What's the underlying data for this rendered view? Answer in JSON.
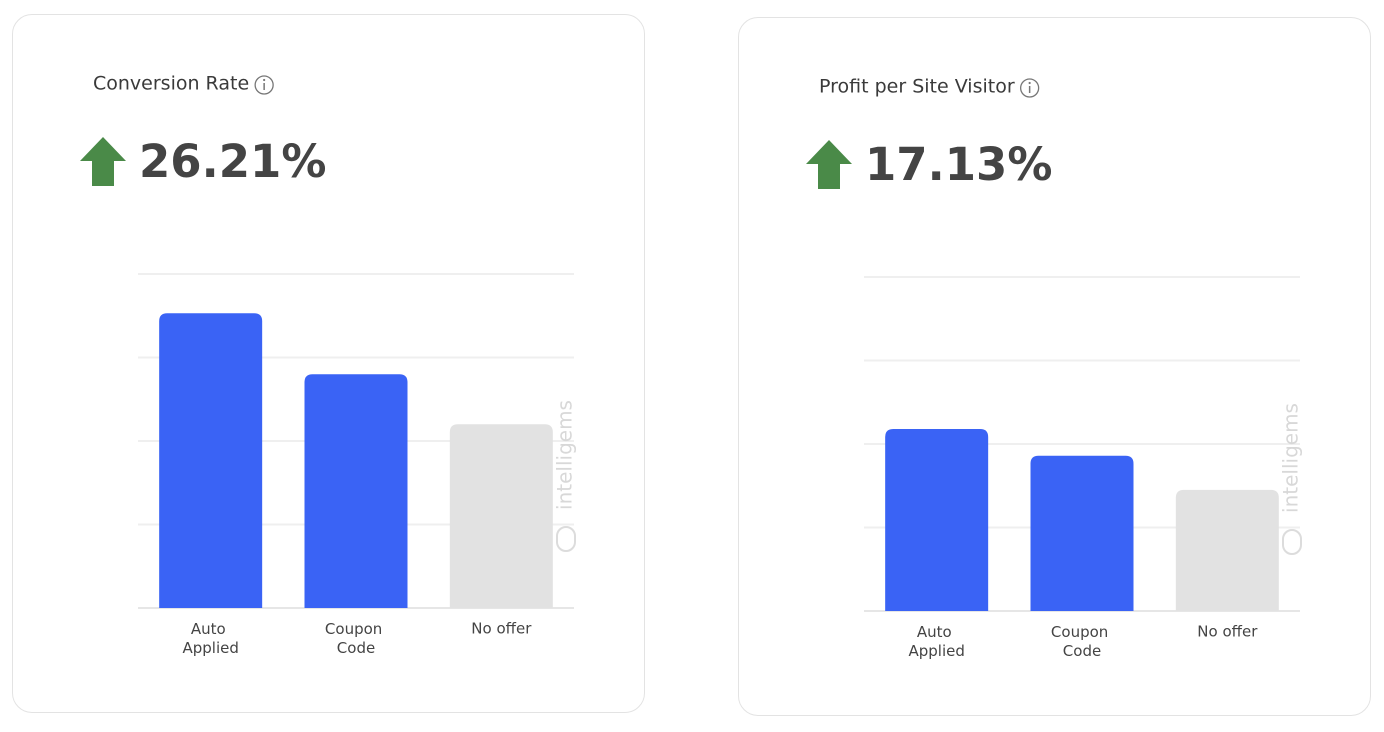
{
  "chart_data": [
    {
      "type": "bar",
      "title": "Conversion Rate",
      "headline": "26.21%",
      "watermark": "intelligems",
      "categories": [
        "Auto Applied",
        "Coupon Code",
        "No offer"
      ],
      "values": [
        3.53,
        2.8,
        2.2
      ],
      "colors": [
        "#3a63f5",
        "#3a63f5",
        "#e2e2e2"
      ],
      "ylim": [
        0,
        4
      ],
      "yticks": [
        0,
        1,
        2,
        3,
        4
      ],
      "grid": true
    },
    {
      "type": "bar",
      "title": "Profit per Site Visitor",
      "headline": "17.13%",
      "watermark": "intelligems",
      "categories": [
        "Auto Applied",
        "Coupon Code",
        "No offer"
      ],
      "values": [
        2.18,
        1.86,
        1.45
      ],
      "colors": [
        "#3a63f5",
        "#3a63f5",
        "#e2e2e2"
      ],
      "ylim": [
        0,
        4
      ],
      "yticks": [
        0,
        1,
        2,
        3,
        4
      ],
      "grid": true
    }
  ]
}
